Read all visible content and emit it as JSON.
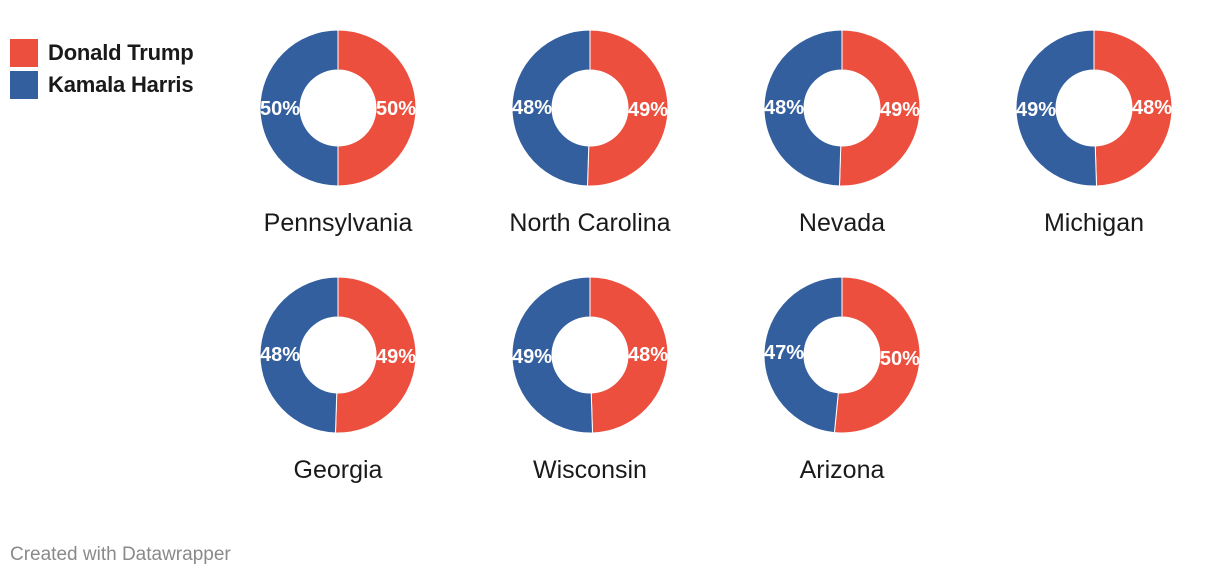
{
  "colors": {
    "trump": "#ec4f3e",
    "harris": "#335f9f"
  },
  "legend": {
    "items": [
      {
        "label": "Donald Trump",
        "color": "#ec4f3e"
      },
      {
        "label": "Kamala Harris",
        "color": "#335f9f"
      }
    ]
  },
  "chart_data": {
    "type": "pie",
    "variant": "donut small multiples",
    "series_names": [
      "Donald Trump",
      "Kamala Harris"
    ],
    "states": [
      {
        "name": "Pennsylvania",
        "trump": 50,
        "harris": 50
      },
      {
        "name": "North Carolina",
        "trump": 49,
        "harris": 48
      },
      {
        "name": "Nevada",
        "trump": 49,
        "harris": 48
      },
      {
        "name": "Michigan",
        "trump": 48,
        "harris": 49
      },
      {
        "name": "Georgia",
        "trump": 49,
        "harris": 48
      },
      {
        "name": "Wisconsin",
        "trump": 48,
        "harris": 49
      },
      {
        "name": "Arizona",
        "trump": 50,
        "harris": 47
      }
    ],
    "value_suffix": "%"
  },
  "footer": {
    "credit": "Created with Datawrapper"
  }
}
